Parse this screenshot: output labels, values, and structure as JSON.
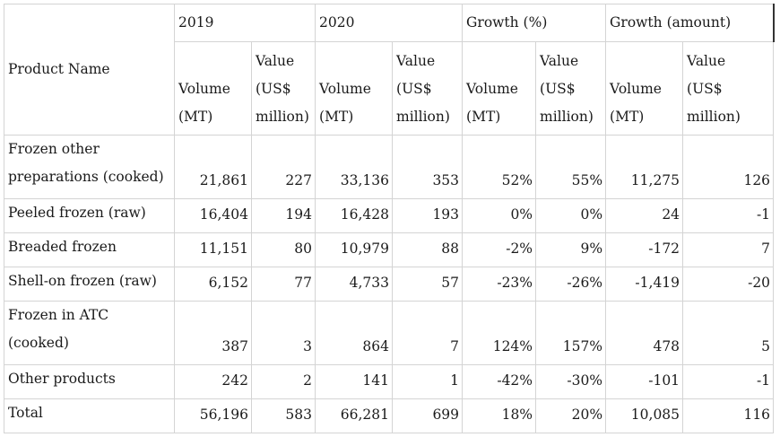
{
  "table": {
    "header_top": {
      "product_name": "Product Name",
      "year1": "2019",
      "year2": "2020",
      "growth_pct": "Growth (%)",
      "growth_amt": "Growth (amount)"
    },
    "header_sub": {
      "volume": [
        "Volume",
        "(MT)"
      ],
      "value": [
        "Value",
        "(US$",
        "million)"
      ]
    },
    "rows": [
      {
        "name": [
          "Frozen other",
          "preparations (cooked)"
        ],
        "v19": "21,861",
        "val19": "227",
        "v20": "33,136",
        "val20": "353",
        "gvp": "52%",
        "gvalp": "55%",
        "gva": "11,275",
        "gvala": "126"
      },
      {
        "name": [
          "Peeled frozen (raw)"
        ],
        "v19": "16,404",
        "val19": "194",
        "v20": "16,428",
        "val20": "193",
        "gvp": "0%",
        "gvalp": "0%",
        "gva": "24",
        "gvala": "-1"
      },
      {
        "name": [
          "Breaded frozen"
        ],
        "v19": "11,151",
        "val19": "80",
        "v20": "10,979",
        "val20": "88",
        "gvp": "-2%",
        "gvalp": "9%",
        "gva": "-172",
        "gvala": "7"
      },
      {
        "name": [
          "Shell-on frozen (raw)"
        ],
        "v19": "6,152",
        "val19": "77",
        "v20": "4,733",
        "val20": "57",
        "gvp": "-23%",
        "gvalp": "-26%",
        "gva": "-1,419",
        "gvala": "-20"
      },
      {
        "name": [
          "Frozen in ATC",
          "(cooked)"
        ],
        "v19": "387",
        "val19": "3",
        "v20": "864",
        "val20": "7",
        "gvp": "124%",
        "gvalp": "157%",
        "gva": "478",
        "gvala": "5"
      },
      {
        "name": [
          "Other products"
        ],
        "v19": "242",
        "val19": "2",
        "v20": "141",
        "val20": "1",
        "gvp": "-42%",
        "gvalp": "-30%",
        "gva": "-101",
        "gvala": "-1"
      },
      {
        "name": [
          "Total"
        ],
        "v19": "56,196",
        "val19": "583",
        "v20": "66,281",
        "val20": "699",
        "gvp": "18%",
        "gvalp": "20%",
        "gva": "10,085",
        "gvala": "116"
      }
    ]
  }
}
